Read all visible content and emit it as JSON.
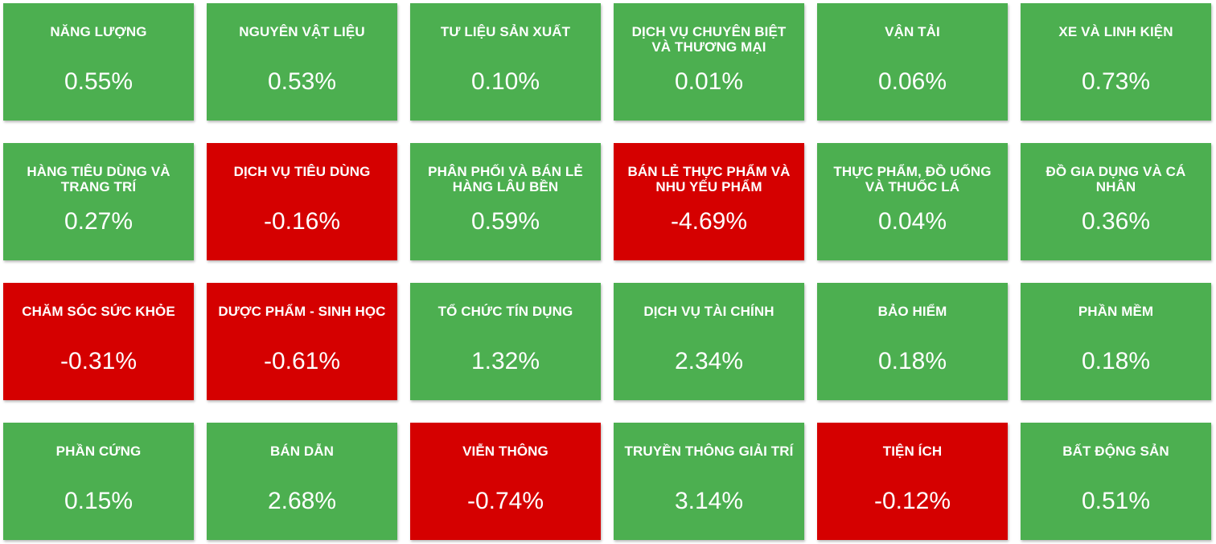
{
  "colors": {
    "positive": "#4caf50",
    "negative": "#d50000",
    "text": "#ffffff",
    "background": "#ffffff"
  },
  "tiles": [
    {
      "label": "NĂNG LƯỢNG",
      "value": "0.55%",
      "status": "positive"
    },
    {
      "label": "NGUYÊN VẬT LIỆU",
      "value": "0.53%",
      "status": "positive"
    },
    {
      "label": "TƯ LIỆU SẢN XUẤT",
      "value": "0.10%",
      "status": "positive"
    },
    {
      "label": "DỊCH VỤ CHUYÊN BIỆT VÀ THƯƠNG MẠI",
      "value": "0.01%",
      "status": "positive"
    },
    {
      "label": "VẬN TẢI",
      "value": "0.06%",
      "status": "positive"
    },
    {
      "label": "XE VÀ LINH KIỆN",
      "value": "0.73%",
      "status": "positive"
    },
    {
      "label": "HÀNG TIÊU DÙNG VÀ TRANG TRÍ",
      "value": "0.27%",
      "status": "positive"
    },
    {
      "label": "DỊCH VỤ TIÊU DÙNG",
      "value": "-0.16%",
      "status": "negative"
    },
    {
      "label": "PHÂN PHỐI VÀ BÁN LẺ HÀNG LÂU BỀN",
      "value": "0.59%",
      "status": "positive"
    },
    {
      "label": "BÁN LẺ THỰC PHẨM VÀ NHU YẾU PHẨM",
      "value": "-4.69%",
      "status": "negative"
    },
    {
      "label": "THỰC PHẨM, ĐỒ UỐNG VÀ THUỐC LÁ",
      "value": "0.04%",
      "status": "positive"
    },
    {
      "label": "ĐỒ GIA DỤNG VÀ CÁ NHÂN",
      "value": "0.36%",
      "status": "positive"
    },
    {
      "label": "CHĂM SÓC SỨC KHỎE",
      "value": "-0.31%",
      "status": "negative"
    },
    {
      "label": "DƯỢC PHẨM - SINH HỌC",
      "value": "-0.61%",
      "status": "negative"
    },
    {
      "label": "TỔ CHỨC TÍN DỤNG",
      "value": "1.32%",
      "status": "positive"
    },
    {
      "label": "DỊCH VỤ TÀI CHÍNH",
      "value": "2.34%",
      "status": "positive"
    },
    {
      "label": "BẢO HIỂM",
      "value": "0.18%",
      "status": "positive"
    },
    {
      "label": "PHẦN MỀM",
      "value": "0.18%",
      "status": "positive"
    },
    {
      "label": "PHẦN CỨNG",
      "value": "0.15%",
      "status": "positive"
    },
    {
      "label": "BÁN DẪN",
      "value": "2.68%",
      "status": "positive"
    },
    {
      "label": "VIỄN THÔNG",
      "value": "-0.74%",
      "status": "negative"
    },
    {
      "label": "TRUYỀN THÔNG GIẢI TRÍ",
      "value": "3.14%",
      "status": "positive"
    },
    {
      "label": "TIỆN ÍCH",
      "value": "-0.12%",
      "status": "negative"
    },
    {
      "label": "BẤT ĐỘNG SẢN",
      "value": "0.51%",
      "status": "positive"
    }
  ]
}
